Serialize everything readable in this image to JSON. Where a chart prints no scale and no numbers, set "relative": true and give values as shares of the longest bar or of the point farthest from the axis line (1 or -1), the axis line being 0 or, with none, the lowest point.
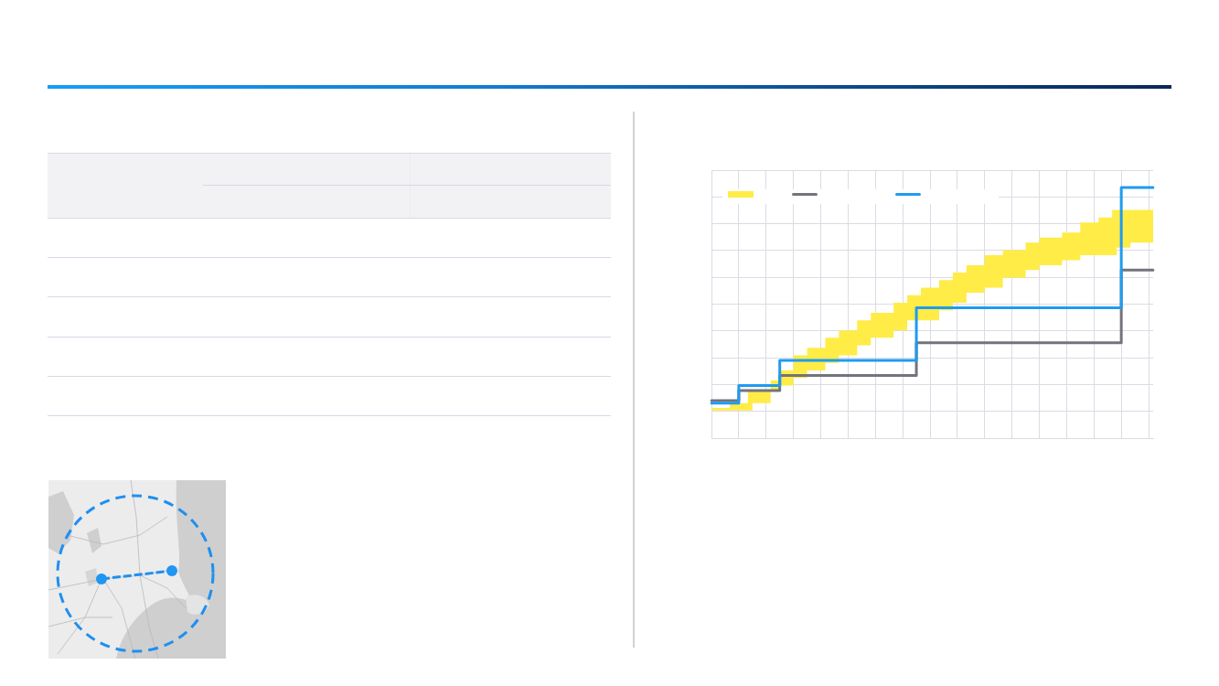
{
  "chart_data": {
    "type": "step",
    "relative": true,
    "grid": true,
    "categories": [
      null,
      null,
      null,
      null,
      null,
      null,
      null,
      null,
      null,
      null,
      null,
      null,
      null,
      null,
      null,
      null,
      null,
      null,
      null,
      null,
      null,
      null,
      null,
      null,
      null,
      null,
      null,
      null,
      null,
      null,
      null,
      null,
      null,
      null,
      null,
      null,
      null,
      null,
      null,
      null,
      null,
      null,
      null,
      null,
      null,
      null,
      null,
      null,
      null,
      null,
      null,
      null,
      null,
      null,
      null,
      null,
      null,
      null,
      null,
      null,
      null,
      null,
      null,
      null,
      null,
      null,
      null,
      null,
      null,
      null,
      null,
      null,
      null,
      null,
      null,
      null,
      null,
      null,
      null,
      null,
      null,
      null,
      null,
      null,
      null,
      null,
      null,
      null,
      null,
      null,
      null,
      null,
      null,
      null,
      null,
      null,
      null,
      null
    ],
    "series": [
      {
        "color": "#ffec47",
        "values": [
          null,
          null,
          null,
          null,
          null,
          null,
          null,
          null,
          null,
          null,
          null,
          null,
          null,
          null,
          null,
          null,
          null,
          null,
          null,
          null,
          null,
          null,
          null,
          null,
          null,
          null,
          null,
          null,
          null,
          null,
          null,
          null,
          null,
          null,
          null,
          null,
          null,
          null,
          null,
          null,
          null,
          null,
          null,
          null,
          null,
          null,
          null,
          null,
          null,
          null,
          null,
          null,
          null,
          null,
          null,
          null,
          null,
          null,
          null,
          null,
          null,
          null,
          null,
          null,
          null,
          null,
          null,
          null,
          null,
          null,
          null,
          null,
          null,
          null,
          null,
          null,
          null,
          null,
          null,
          null,
          null,
          null,
          null,
          null,
          null,
          null,
          null,
          null,
          null,
          null,
          null,
          null,
          null,
          null,
          null,
          null,
          null,
          null
        ],
        "lower": [
          0.11,
          0.11,
          0.11,
          0.11,
          0.11,
          0.11,
          0.11,
          0.11,
          0.11,
          0.14,
          0.14,
          0.14,
          0.14,
          0.19,
          0.19,
          0.21,
          0.21,
          0.21,
          0.24,
          0.24,
          0.24,
          0.27,
          0.27,
          0.27,
          0.27,
          0.3,
          0.3,
          0.3,
          0.33,
          0.33,
          0.33,
          0.33,
          0.37,
          0.37,
          0.37,
          0.4,
          0.4,
          0.4,
          0.4,
          0.4,
          0.43,
          0.43,
          0.43,
          0.47,
          0.47,
          0.47,
          0.47,
          0.47,
          0.47,
          0.47,
          0.51,
          0.51,
          0.51,
          0.54,
          0.54,
          0.54,
          0.58,
          0.58,
          0.58,
          0.58,
          0.6,
          0.6,
          0.6,
          0.6,
          0.64,
          0.64,
          0.64,
          0.64,
          0.64,
          0.67,
          0.67,
          0.67,
          0.69,
          0.69,
          0.69,
          0.69,
          0.69,
          0.71,
          0.71,
          0.71,
          0.71,
          0.73,
          0.73,
          0.73,
          0.73,
          0.73,
          0.73,
          0.73,
          0.73,
          0.76,
          0.76,
          0.76,
          0.78,
          0.78,
          0.78,
          0.78,
          0.78,
          0.78
        ],
        "upper": [
          0.12,
          0.12,
          0.12,
          0.12,
          0.14,
          0.14,
          0.14,
          0.14,
          0.19,
          0.19,
          0.19,
          0.19,
          0.19,
          0.23,
          0.23,
          0.27,
          0.27,
          0.27,
          0.33,
          0.33,
          0.33,
          0.36,
          0.36,
          0.36,
          0.36,
          0.4,
          0.4,
          0.4,
          0.43,
          0.43,
          0.43,
          0.43,
          0.47,
          0.47,
          0.47,
          0.5,
          0.5,
          0.5,
          0.5,
          0.5,
          0.54,
          0.54,
          0.54,
          0.57,
          0.57,
          0.57,
          0.6,
          0.6,
          0.6,
          0.6,
          0.63,
          0.63,
          0.63,
          0.66,
          0.66,
          0.66,
          0.69,
          0.69,
          0.69,
          0.69,
          0.73,
          0.73,
          0.73,
          0.73,
          0.75,
          0.75,
          0.75,
          0.75,
          0.75,
          0.78,
          0.78,
          0.78,
          0.8,
          0.8,
          0.8,
          0.8,
          0.8,
          0.82,
          0.82,
          0.82,
          0.82,
          0.86,
          0.86,
          0.86,
          0.86,
          0.88,
          0.88,
          0.88,
          0.91,
          0.91,
          0.91,
          0.91,
          0.91,
          0.91,
          0.91,
          0.91,
          0.91,
          0.91
        ]
      },
      {
        "color": "#74737c",
        "values": [
          0.15,
          0.15,
          0.15,
          0.15,
          0.15,
          0.15,
          0.19,
          0.19,
          0.19,
          0.19,
          0.19,
          0.19,
          0.19,
          0.19,
          0.19,
          0.25,
          0.25,
          0.25,
          0.25,
          0.25,
          0.25,
          0.25,
          0.25,
          0.25,
          0.25,
          0.25,
          0.25,
          0.25,
          0.25,
          0.25,
          0.25,
          0.25,
          0.25,
          0.25,
          0.25,
          0.25,
          0.25,
          0.25,
          0.25,
          0.25,
          0.25,
          0.25,
          0.25,
          0.25,
          0.25,
          0.38,
          0.38,
          0.38,
          0.38,
          0.38,
          0.38,
          0.38,
          0.38,
          0.38,
          0.38,
          0.38,
          0.38,
          0.38,
          0.38,
          0.38,
          0.38,
          0.38,
          0.38,
          0.38,
          0.38,
          0.38,
          0.38,
          0.38,
          0.38,
          0.38,
          0.38,
          0.38,
          0.38,
          0.38,
          0.38,
          0.38,
          0.38,
          0.38,
          0.38,
          0.38,
          0.38,
          0.38,
          0.38,
          0.38,
          0.38,
          0.38,
          0.38,
          0.38,
          0.38,
          0.38,
          0.67,
          0.67,
          0.67,
          0.67,
          0.67,
          0.67,
          0.67,
          0.67
        ]
      },
      {
        "color": "#1f9bf0",
        "values": [
          0.14,
          0.14,
          0.14,
          0.14,
          0.14,
          0.14,
          0.21,
          0.21,
          0.21,
          0.21,
          0.21,
          0.21,
          0.21,
          0.21,
          0.21,
          0.31,
          0.31,
          0.31,
          0.31,
          0.31,
          0.31,
          0.31,
          0.31,
          0.31,
          0.31,
          0.31,
          0.31,
          0.31,
          0.31,
          0.31,
          0.31,
          0.31,
          0.31,
          0.31,
          0.31,
          0.31,
          0.31,
          0.31,
          0.31,
          0.31,
          0.31,
          0.31,
          0.31,
          0.31,
          0.31,
          0.52,
          0.52,
          0.52,
          0.52,
          0.52,
          0.52,
          0.52,
          0.52,
          0.52,
          0.52,
          0.52,
          0.52,
          0.52,
          0.52,
          0.52,
          0.52,
          0.52,
          0.52,
          0.52,
          0.52,
          0.52,
          0.52,
          0.52,
          0.52,
          0.52,
          0.52,
          0.52,
          0.52,
          0.52,
          0.52,
          0.52,
          0.52,
          0.52,
          0.52,
          0.52,
          0.52,
          0.52,
          0.52,
          0.52,
          0.52,
          0.52,
          0.52,
          0.52,
          0.52,
          0.52,
          1,
          1,
          1,
          1,
          1,
          1,
          1,
          1
        ]
      }
    ]
  }
}
